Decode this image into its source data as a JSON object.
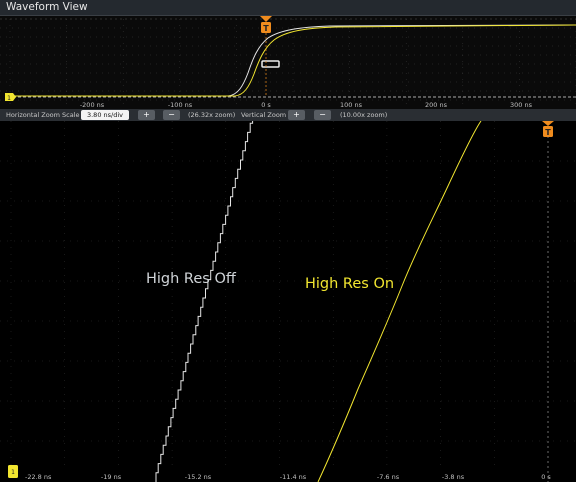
{
  "window": {
    "title": "Waveform View"
  },
  "overview": {
    "x_ticks": [
      "-200 ns",
      "-100 ns",
      "0 s",
      "100 ns",
      "200 ns",
      "300 ns"
    ],
    "trigger_label": "T",
    "cursor_label": "1"
  },
  "zoom_bar": {
    "h_label": "Horizontal Zoom Scale",
    "h_value": "3.80 ns/div",
    "h_plus": "+",
    "h_minus": "−",
    "h_zoom": "(26.32x zoom)",
    "v_label": "Vertical Zoom",
    "v_plus": "+",
    "v_minus": "−",
    "v_zoom": "(10.00x zoom)"
  },
  "zoom_view": {
    "x_ticks": [
      "-22.8 ns",
      "-19 ns",
      "-15.2 ns",
      "-11.4 ns",
      "-7.6 ns",
      "-3.8 ns",
      "0 s"
    ],
    "trigger_label": "T",
    "cursor_label": "1"
  },
  "annotations": {
    "high_res_off": "High Res Off",
    "high_res_on": "High Res On"
  },
  "colors": {
    "accent_yellow": "#f2e630",
    "white_trace": "#e6e6e6",
    "trigger_orange": "#f08c1e",
    "background": "#000000"
  }
}
